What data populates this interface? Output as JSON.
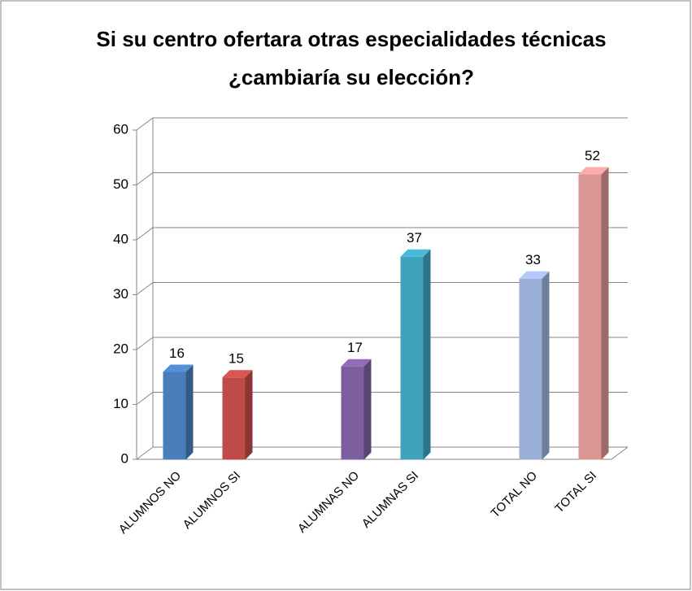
{
  "chart_data": {
    "type": "bar3d",
    "title": [
      "Si su centro ofertara otras especialidades técnicas",
      "¿cambiaría su elección?"
    ],
    "categories": [
      "ALUMNOS NO",
      "ALUMNOS SI",
      null,
      "ALUMNAS NO",
      "ALUMNAS SI",
      null,
      "TOTAL NO",
      "TOTAL SI"
    ],
    "values": [
      16,
      15,
      null,
      17,
      37,
      null,
      33,
      52
    ],
    "colors": [
      "#4a7ebb",
      "#be4b48",
      null,
      "#7d5fa0",
      "#3fa3bd",
      null,
      "#9bb0d9",
      "#d99694"
    ],
    "ylim": [
      0,
      60
    ],
    "yticks": [
      0,
      10,
      20,
      30,
      40,
      50,
      60
    ],
    "grid": true
  }
}
